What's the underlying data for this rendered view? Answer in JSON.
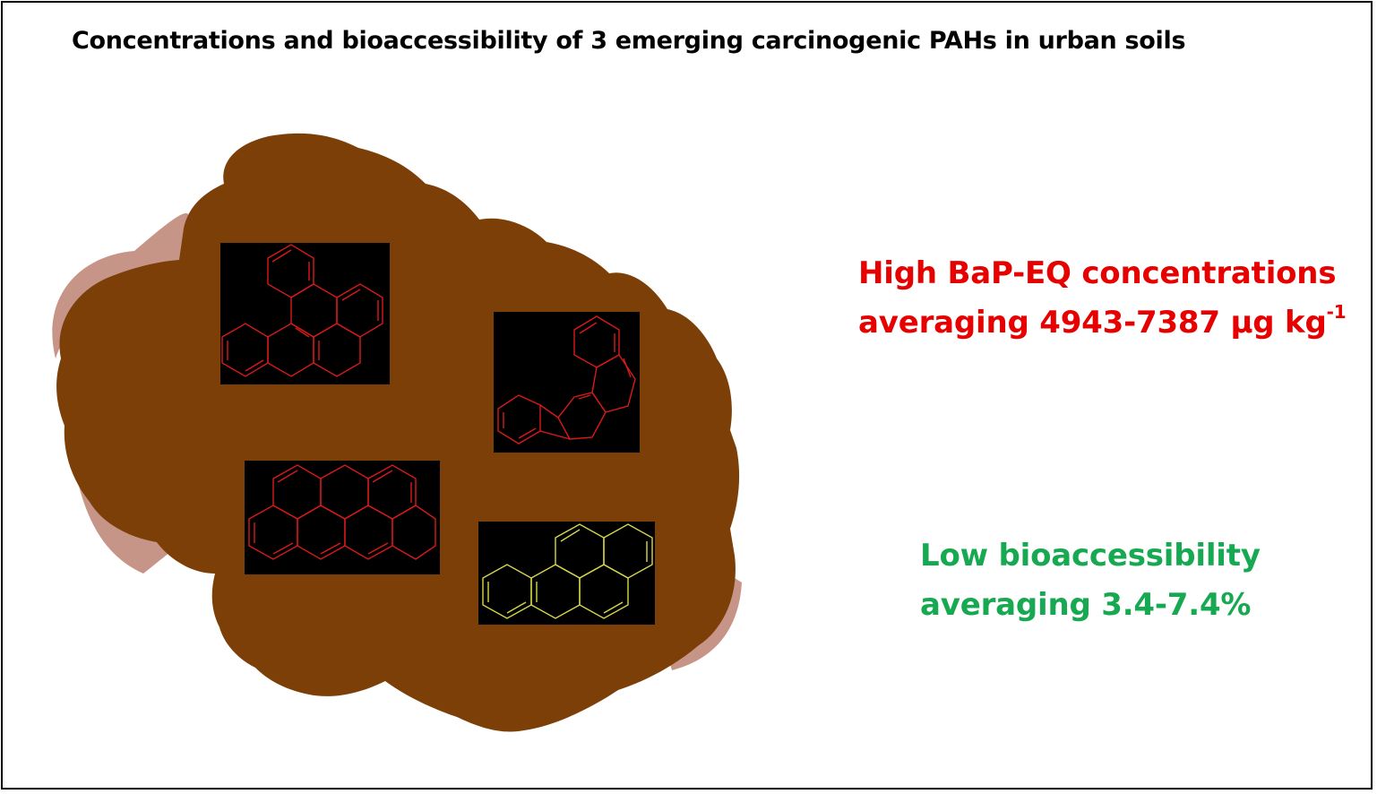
{
  "title": "Concentrations and bioaccessibility of 3 emerging carcinogenic PAHs in urban soils",
  "colors": {
    "soil": "#7c3f08",
    "soil_edge": "#c69587",
    "highlight_red": "#e60000",
    "highlight_green": "#16a951",
    "structure_red": "#d81a1a",
    "structure_yellow": "#d8d84a"
  },
  "findings": {
    "high": {
      "line1": "High BaP-EQ concentrations",
      "line2": "averaging 4943-7387 µg kg",
      "line2_sup": "-1"
    },
    "low": {
      "line1": "Low bioaccessibility",
      "line2": "averaging 3.4-7.4%"
    }
  },
  "structures": [
    {
      "id": "structure-1",
      "color": "red"
    },
    {
      "id": "structure-2",
      "color": "red"
    },
    {
      "id": "structure-3",
      "color": "red"
    },
    {
      "id": "structure-4",
      "color": "yellow"
    }
  ]
}
